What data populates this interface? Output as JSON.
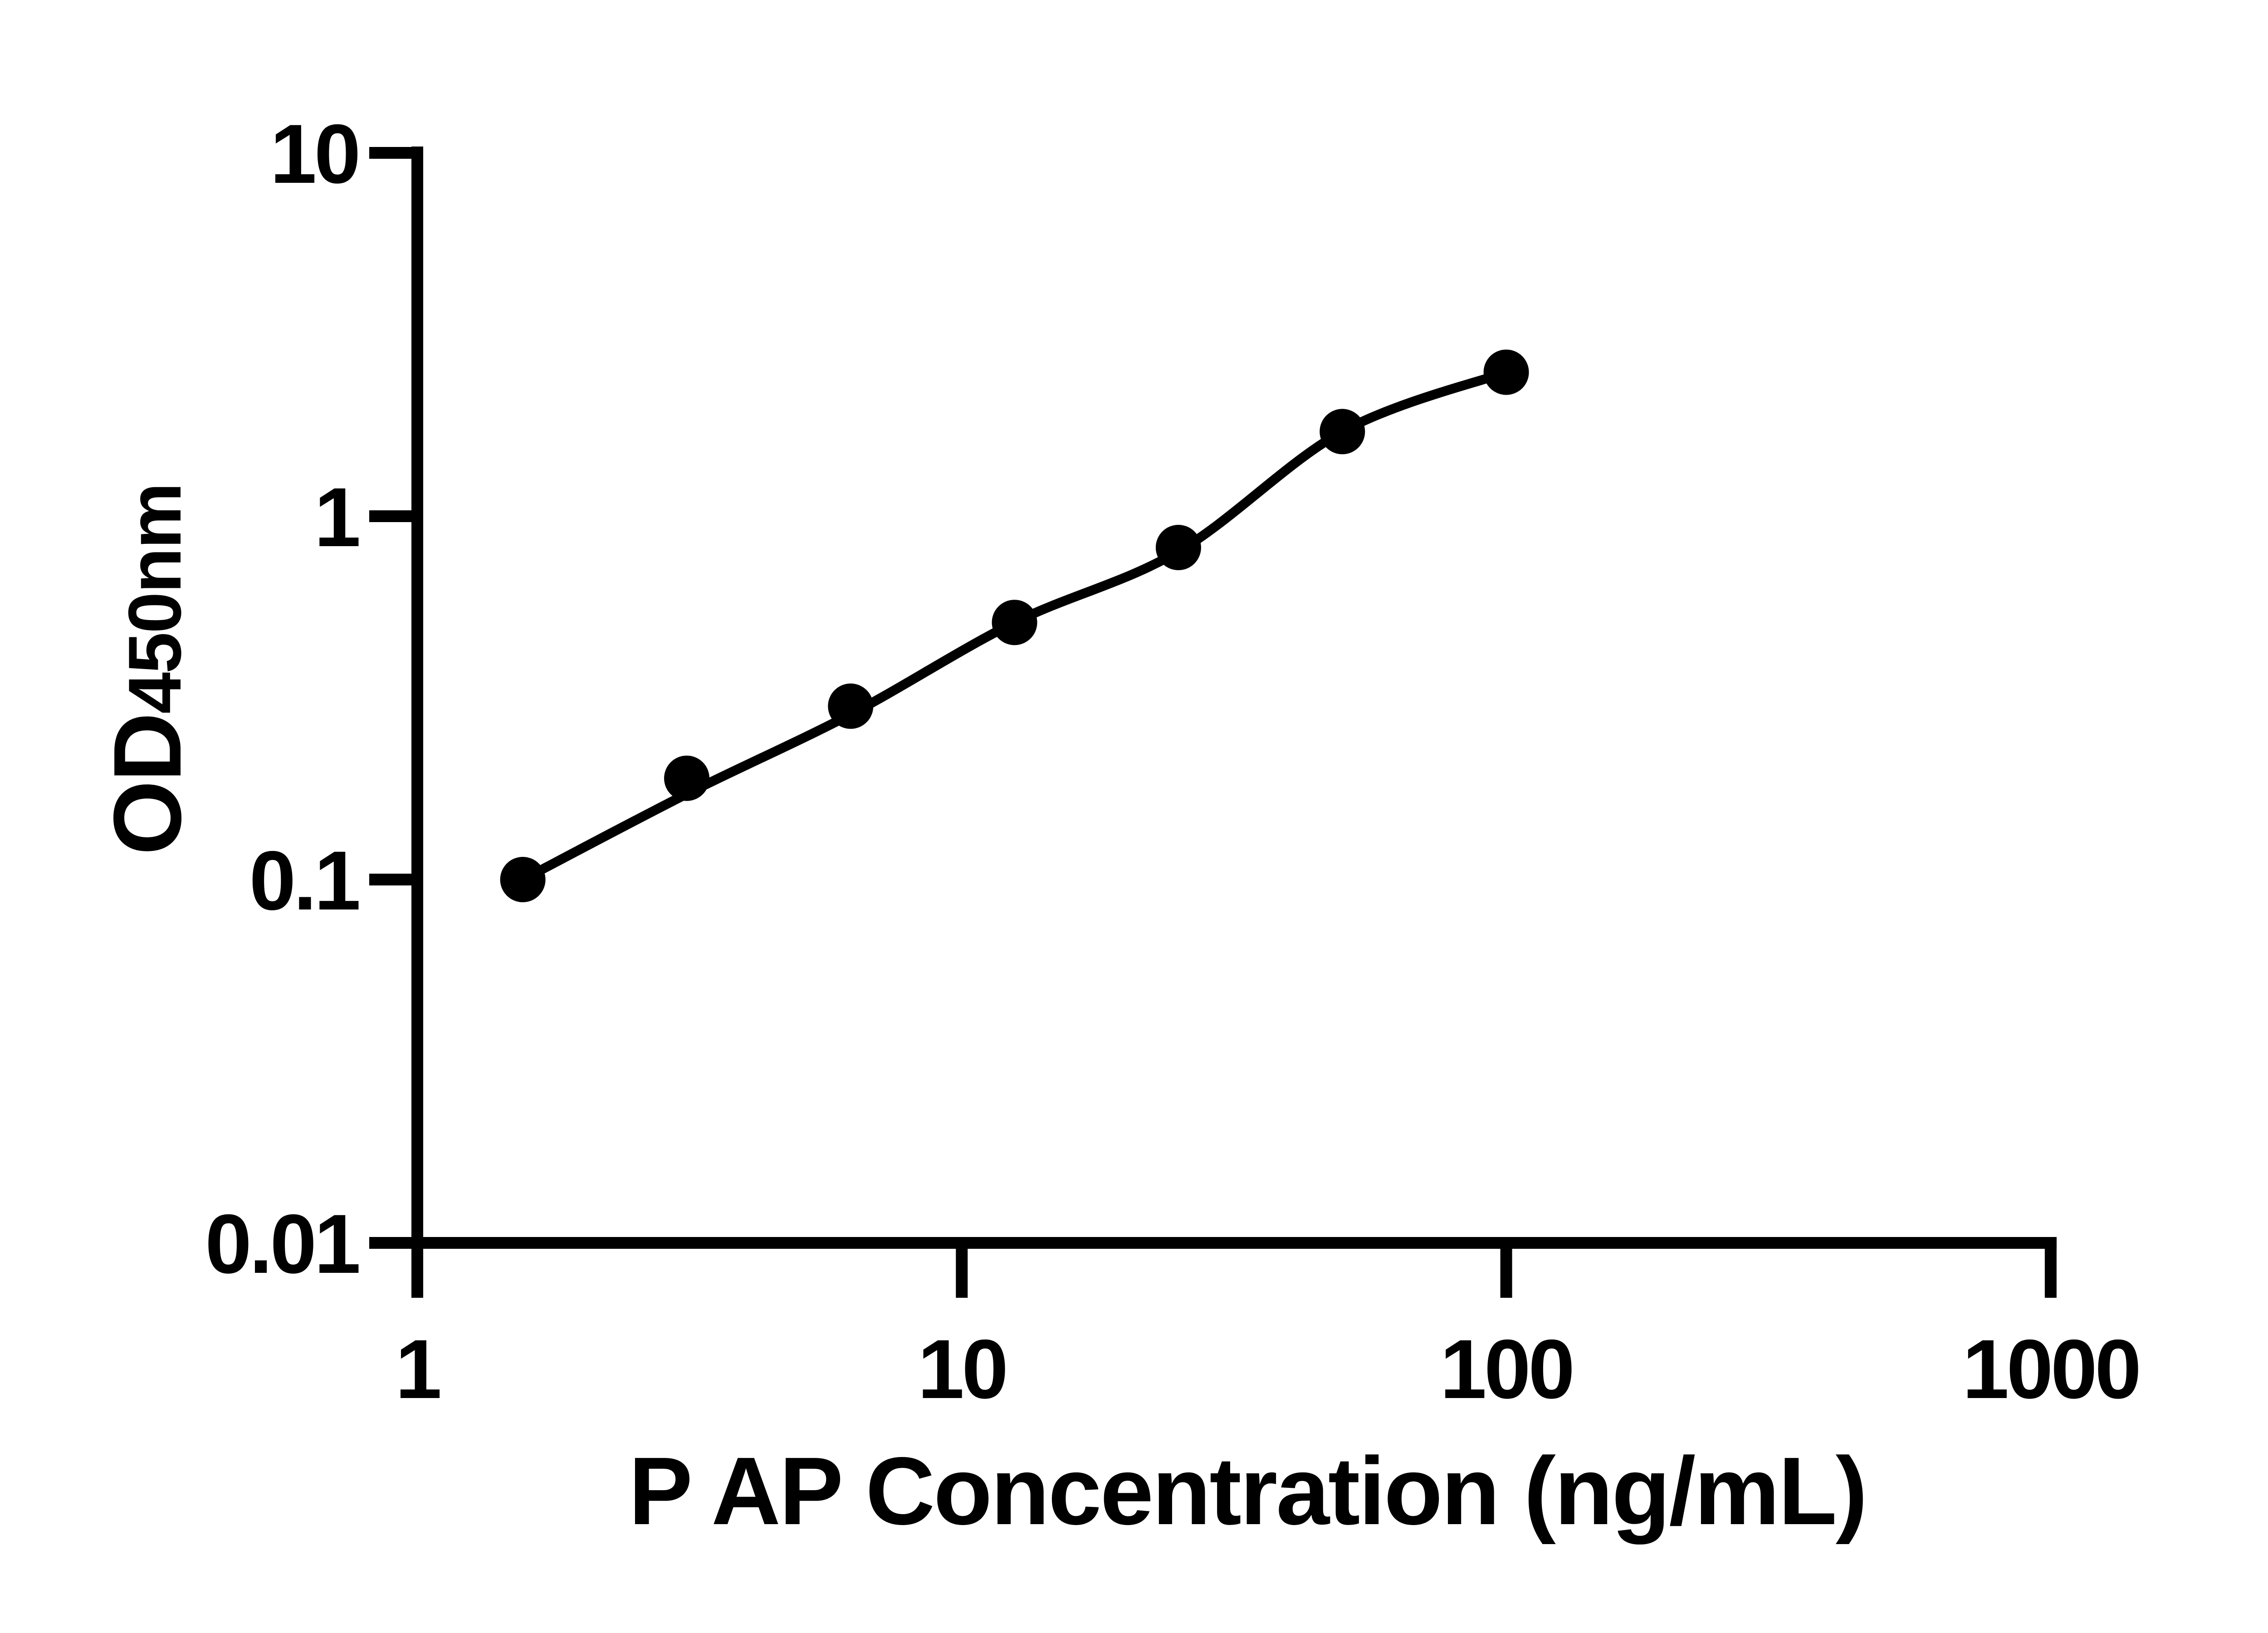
{
  "colors": {
    "foreground": "#000000",
    "background": "#ffffff"
  },
  "chart_data": {
    "type": "scatter",
    "title": "",
    "xlabel": "P AP Concentration (ng/mL)",
    "ylabel_main": "OD",
    "ylabel_sub": "450nm",
    "x_scale": "log10",
    "y_scale": "log10",
    "xlim": [
      1,
      1000
    ],
    "ylim": [
      0.01,
      10
    ],
    "grid": false,
    "legend_position": "none",
    "x_ticks": [
      {
        "value": 1,
        "label": "1"
      },
      {
        "value": 10,
        "label": "10"
      },
      {
        "value": 100,
        "label": "100"
      },
      {
        "value": 1000,
        "label": "1000"
      }
    ],
    "y_ticks": [
      {
        "value": 10,
        "label": "10"
      },
      {
        "value": 1,
        "label": "1"
      },
      {
        "value": 0.1,
        "label": "0.1"
      },
      {
        "value": 0.01,
        "label": "0.01"
      }
    ],
    "series": [
      {
        "name": "standard-curve-points",
        "marker": "filled-circle",
        "color": "#000000",
        "x": [
          1.5625,
          3.125,
          6.25,
          12.5,
          25,
          50,
          100
        ],
        "values": [
          0.1,
          0.19,
          0.3,
          0.51,
          0.82,
          1.71,
          2.49
        ]
      }
    ],
    "fit_curve": {
      "name": "four-parameter-fit-line",
      "color": "#000000",
      "x": [
        1.5625,
        3.125,
        6.25,
        12.5,
        25,
        50,
        100
      ],
      "values": [
        0.1,
        0.172,
        0.285,
        0.51,
        0.8,
        1.71,
        2.49
      ]
    }
  }
}
